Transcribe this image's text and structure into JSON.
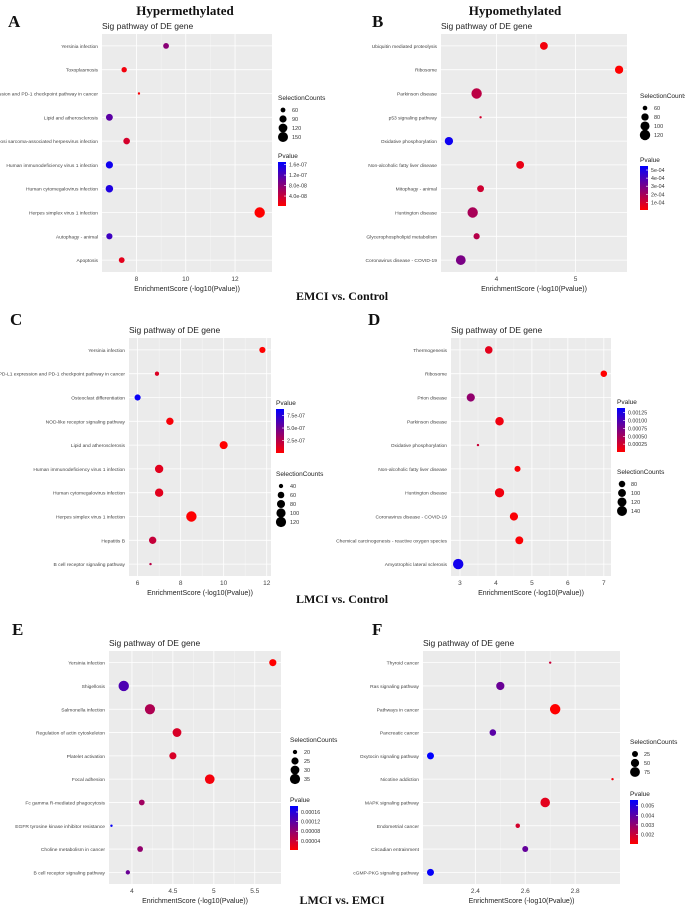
{
  "figure": {
    "col_title_left": "Hypermethylated",
    "col_title_right": "Hypomethylated",
    "comparison_1": "EMCI vs. Control",
    "comparison_2": "LMCI vs. Control",
    "comparison_3": "LMCI vs. EMCI"
  },
  "colors": {
    "panel_bg": "#ebebeb",
    "grid": "#ffffff",
    "low_p": "#ff0000",
    "high_p": "#0000ff"
  },
  "chart_data": [
    {
      "panel": "A",
      "type": "scatter",
      "title": "Sig pathway of DE gene",
      "xlabel": "EnrichmentScore (-log10(Pvalue))",
      "ylabel": "",
      "xlim": [
        6.6,
        13.5
      ],
      "xticks": [
        8,
        10,
        12
      ],
      "categories": [
        "Yersinia infection",
        "Toxoplasmosis",
        "PD-L1 expression and PD-1 checkpoint pathway in cancer",
        "Lipid and atherosclerosis",
        "Kaposi sarcoma-associated herpesvirus infection",
        "Human immunodeficiency virus 1 infection",
        "Human cytomegalovirus infection",
        "Herpes simplex virus 1 infection",
        "Autophagy - animal",
        "Apoptosis"
      ],
      "x": [
        9.2,
        7.5,
        8.1,
        6.9,
        7.6,
        6.9,
        6.9,
        13.0,
        6.9,
        7.4
      ],
      "size": [
        70,
        65,
        50,
        85,
        80,
        90,
        95,
        160,
        75,
        70
      ],
      "pvalue": [
        8e-08,
        1e-08,
        5e-09,
        1.1e-07,
        3e-08,
        1.6e-07,
        1.5e-07,
        2e-09,
        1.3e-07,
        2e-08
      ],
      "size_legend": {
        "title": "SelectionCounts",
        "values": [
          60,
          90,
          120,
          150
        ]
      },
      "color_legend": {
        "title": "Pvalue",
        "ticks": [
          "1.6e-07",
          "1.2e-07",
          "8.0e-08",
          "4.0e-08"
        ],
        "min": 2e-09,
        "max": 1.7e-07,
        "tick_values": [
          1.6e-07,
          1.2e-07,
          8e-08,
          4e-08
        ]
      }
    },
    {
      "panel": "B",
      "type": "scatter",
      "title": "Sig pathway of DE gene",
      "xlabel": "EnrichmentScore (-log10(Pvalue))",
      "ylabel": "",
      "xlim": [
        3.3,
        5.65
      ],
      "xticks": [
        4,
        5
      ],
      "categories": [
        "Ubiquitin mediated proteolysis",
        "Ribosome",
        "Parkinson disease",
        "p53 signaling pathway",
        "Oxidative phosphorylation",
        "Non-alcoholic fatty liver disease",
        "Mitophagy - animal",
        "Huntington disease",
        "Glycerophospholipid metabolism",
        "Coronavirus disease - COVID-19"
      ],
      "x": [
        4.6,
        5.55,
        3.75,
        3.8,
        3.4,
        4.3,
        3.8,
        3.7,
        3.75,
        3.55
      ],
      "size": [
        85,
        90,
        120,
        55,
        90,
        85,
        75,
        120,
        70,
        110
      ],
      "pvalue": [
        3e-05,
        5e-06,
        0.00015,
        0.0001,
        0.00052,
        5e-05,
        0.00011,
        0.00019,
        0.00016,
        0.00029
      ],
      "size_legend": {
        "title": "SelectionCounts",
        "values": [
          60,
          80,
          100,
          120
        ]
      },
      "color_legend": {
        "title": "Pvalue",
        "ticks": [
          "5e-04",
          "4e-04",
          "3e-04",
          "2e-04",
          "1e-04"
        ],
        "min": 5e-06,
        "max": 0.00055,
        "tick_values": [
          0.0005,
          0.0004,
          0.0003,
          0.0002,
          0.0001
        ]
      }
    },
    {
      "panel": "C",
      "type": "scatter",
      "title": "Sig pathway of DE gene",
      "xlabel": "EnrichmentScore (-log10(Pvalue))",
      "ylabel": "",
      "xlim": [
        5.6,
        12.2
      ],
      "xticks": [
        6,
        8,
        10,
        12
      ],
      "categories": [
        "Yersinia infection",
        "PD-L1 expression and PD-1 checkpoint pathway in cancer",
        "Osteoclast differentiation",
        "NOD-like receptor signaling pathway",
        "Lipid and atherosclerosis",
        "Human immunodeficiency virus 1 infection",
        "Human cytomegalovirus infection",
        "Herpes simplex virus 1 infection",
        "Hepatitis B",
        "B cell receptor signaling pathway"
      ],
      "x": [
        11.8,
        6.9,
        6.0,
        7.5,
        10.0,
        7.0,
        7.0,
        8.5,
        6.7,
        6.6
      ],
      "size": [
        55,
        40,
        55,
        70,
        80,
        85,
        85,
        125,
        70,
        35
      ],
      "pvalue": [
        2e-09,
        1.2e-07,
        8.5e-07,
        3e-08,
        1e-09,
        1e-07,
        1e-07,
        3e-09,
        2e-07,
        2.4e-07
      ],
      "size_legend": {
        "title": "SelectionCounts",
        "values": [
          40,
          60,
          80,
          100,
          120
        ]
      },
      "color_legend": {
        "title": "Pvalue",
        "ticks": [
          "7.5e-07",
          "5.0e-07",
          "2.5e-07"
        ],
        "min": 1e-09,
        "max": 8.8e-07,
        "tick_values": [
          7.5e-07,
          5e-07,
          2.5e-07
        ]
      }
    },
    {
      "panel": "D",
      "type": "scatter",
      "title": "Sig pathway of DE gene",
      "xlabel": "EnrichmentScore (-log10(Pvalue))",
      "ylabel": "",
      "xlim": [
        2.75,
        7.2
      ],
      "xticks": [
        3,
        4,
        5,
        6,
        7
      ],
      "categories": [
        "Thermogenesis",
        "Ribosome",
        "Prion disease",
        "Parkinson disease",
        "Oxidative phosphorylation",
        "Non-alcoholic fatty liver disease",
        "Huntington disease",
        "Coronavirus disease - COVID-19",
        "Chemical carcinogenesis - reactive oxygen species",
        "Amyotrophic lateral sclerosis"
      ],
      "x": [
        3.8,
        7.0,
        3.3,
        4.1,
        3.5,
        4.6,
        4.1,
        4.5,
        4.65,
        2.95
      ],
      "size": [
        95,
        80,
        105,
        110,
        55,
        75,
        125,
        105,
        100,
        150
      ],
      "pvalue": [
        0.00015,
        1e-07,
        0.0006,
        8e-05,
        0.0003,
        3e-05,
        8e-05,
        3e-05,
        2e-05,
        0.0013
      ],
      "size_legend": {
        "title": "SelectionCounts",
        "values": [
          80,
          100,
          120,
          140
        ]
      },
      "color_legend": {
        "title": "Pvalue",
        "ticks": [
          "0.00125",
          "0.00100",
          "0.00075",
          "0.00050",
          "0.00025"
        ],
        "min": 1e-07,
        "max": 0.0014,
        "tick_values": [
          0.00125,
          0.001,
          0.00075,
          0.0005,
          0.00025
        ]
      }
    },
    {
      "panel": "E",
      "type": "scatter",
      "title": "Sig pathway of DE gene",
      "xlabel": "EnrichmentScore (-log10(Pvalue))",
      "ylabel": "",
      "xlim": [
        3.72,
        5.82
      ],
      "xticks": [
        4.0,
        4.5,
        5.0,
        5.5
      ],
      "categories": [
        "Yersinia infection",
        "Shigellosis",
        "Salmonella infection",
        "Regulation of actin cytoskeleton",
        "Platelet activation",
        "Focal adhesion",
        "Fc gamma R-mediated phagocytosis",
        "EGFR tyrosine kinase inhibitor resistance",
        "Choline metabolism in cancer",
        "B cell receptor signaling pathway"
      ],
      "x": [
        5.72,
        3.9,
        4.22,
        4.55,
        4.5,
        4.95,
        4.12,
        3.75,
        4.1,
        3.95
      ],
      "size": [
        25,
        36,
        35,
        30,
        25,
        33,
        22,
        19,
        22,
        20
      ],
      "pvalue": [
        2e-06,
        0.00013,
        6e-05,
        3e-05,
        3e-05,
        1e-05,
        7e-05,
        0.00018,
        8e-05,
        0.00011
      ],
      "size_legend": {
        "title": "SelectionCounts",
        "values": [
          20,
          25,
          30,
          35
        ]
      },
      "color_legend": {
        "title": "Pvalue",
        "ticks": [
          "0.00016",
          "0.00012",
          "0.00008",
          "0.00004"
        ],
        "min": 2e-06,
        "max": 0.000185,
        "tick_values": [
          0.00016,
          0.00012,
          8e-05,
          4e-05
        ]
      }
    },
    {
      "panel": "F",
      "type": "scatter",
      "title": "Sig pathway of DE gene",
      "xlabel": "EnrichmentScore (-log10(Pvalue))",
      "ylabel": "",
      "xlim": [
        2.19,
        2.98
      ],
      "xticks": [
        2.4,
        2.6,
        2.8
      ],
      "categories": [
        "Thyroid cancer",
        "Ras signaling pathway",
        "Pathways in cancer",
        "Pancreatic cancer",
        "Oxytocin signaling pathway",
        "Nicotine addiction",
        "MAPK signaling pathway",
        "Endometrial cancer",
        "Circadian entrainment",
        "cGMP-PKG signaling pathway"
      ],
      "x": [
        2.7,
        2.5,
        2.72,
        2.47,
        2.22,
        2.95,
        2.68,
        2.57,
        2.6,
        2.22
      ],
      "size": [
        10,
        50,
        85,
        30,
        35,
        10,
        70,
        15,
        25,
        35
      ],
      "pvalue": [
        0.002,
        0.0037,
        0.001,
        0.004,
        0.0056,
        0.0012,
        0.0015,
        0.0018,
        0.0038,
        0.0055
      ],
      "size_legend": {
        "title": "SelectionCounts",
        "values": [
          25,
          50,
          75
        ]
      },
      "color_legend": {
        "title": "Pvalue",
        "ticks": [
          "0.005",
          "0.004",
          "0.003",
          "0.002"
        ],
        "min": 0.001,
        "max": 0.0056,
        "tick_values": [
          0.005,
          0.004,
          0.003,
          0.002
        ]
      }
    }
  ]
}
